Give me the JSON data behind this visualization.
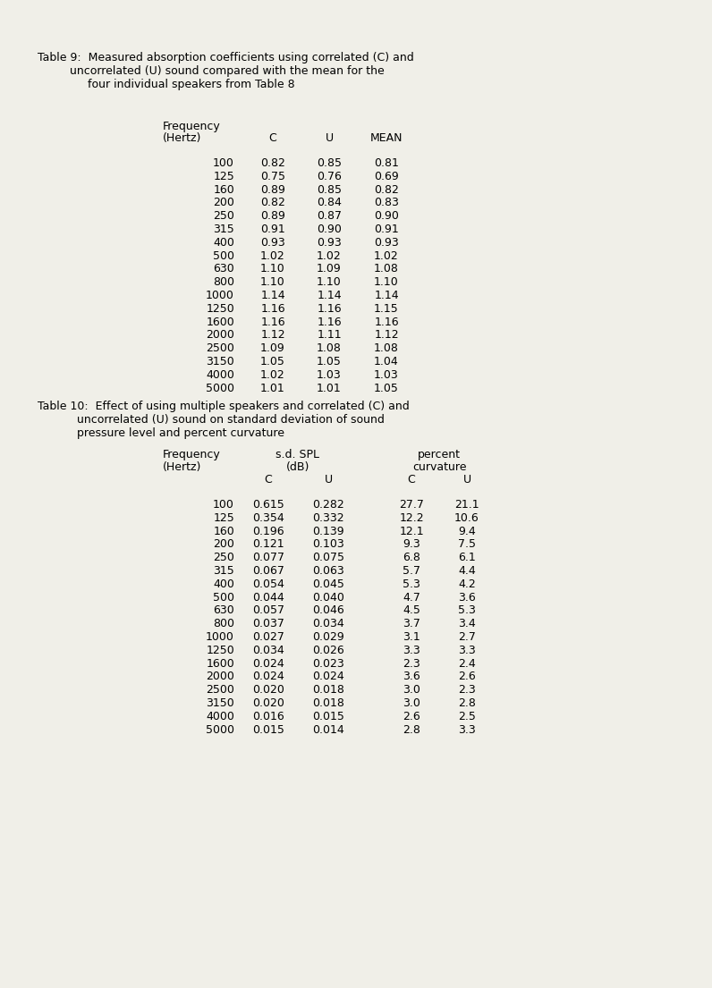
{
  "table9_title_line1": "Table 9:  Measured absorption coefficients using correlated (C) and",
  "table9_title_line2": "         uncorrelated (U) sound compared with the mean for the",
  "table9_title_line3": "              four individual speakers from Table 8",
  "table9_rows": [
    [
      "100",
      "0.82",
      "0.85",
      "0.81"
    ],
    [
      "125",
      "0.75",
      "0.76",
      "0.69"
    ],
    [
      "160",
      "0.89",
      "0.85",
      "0.82"
    ],
    [
      "200",
      "0.82",
      "0.84",
      "0.83"
    ],
    [
      "250",
      "0.89",
      "0.87",
      "0.90"
    ],
    [
      "315",
      "0.91",
      "0.90",
      "0.91"
    ],
    [
      "400",
      "0.93",
      "0.93",
      "0.93"
    ],
    [
      "500",
      "1.02",
      "1.02",
      "1.02"
    ],
    [
      "630",
      "1.10",
      "1.09",
      "1.08"
    ],
    [
      "800",
      "1.10",
      "1.10",
      "1.10"
    ],
    [
      "1000",
      "1.14",
      "1.14",
      "1.14"
    ],
    [
      "1250",
      "1.16",
      "1.16",
      "1.15"
    ],
    [
      "1600",
      "1.16",
      "1.16",
      "1.16"
    ],
    [
      "2000",
      "1.12",
      "1.11",
      "1.12"
    ],
    [
      "2500",
      "1.09",
      "1.08",
      "1.08"
    ],
    [
      "3150",
      "1.05",
      "1.05",
      "1.04"
    ],
    [
      "4000",
      "1.02",
      "1.03",
      "1.03"
    ],
    [
      "5000",
      "1.01",
      "1.01",
      "1.05"
    ]
  ],
  "table10_title_line1": "Table 10:  Effect of using multiple speakers and correlated (C) and",
  "table10_title_line2": "           uncorrelated (U) sound on standard deviation of sound",
  "table10_title_line3": "           pressure level and percent curvature",
  "table10_rows": [
    [
      "100",
      "0.615",
      "0.282",
      "27.7",
      "21.1"
    ],
    [
      "125",
      "0.354",
      "0.332",
      "12.2",
      "10.6"
    ],
    [
      "160",
      "0.196",
      "0.139",
      "12.1",
      "9.4"
    ],
    [
      "200",
      "0.121",
      "0.103",
      "9.3",
      "7.5"
    ],
    [
      "250",
      "0.077",
      "0.075",
      "6.8",
      "6.1"
    ],
    [
      "315",
      "0.067",
      "0.063",
      "5.7",
      "4.4"
    ],
    [
      "400",
      "0.054",
      "0.045",
      "5.3",
      "4.2"
    ],
    [
      "500",
      "0.044",
      "0.040",
      "4.7",
      "3.6"
    ],
    [
      "630",
      "0.057",
      "0.046",
      "4.5",
      "5.3"
    ],
    [
      "800",
      "0.037",
      "0.034",
      "3.7",
      "3.4"
    ],
    [
      "1000",
      "0.027",
      "0.029",
      "3.1",
      "2.7"
    ],
    [
      "1250",
      "0.034",
      "0.026",
      "3.3",
      "3.3"
    ],
    [
      "1600",
      "0.024",
      "0.023",
      "2.3",
      "2.4"
    ],
    [
      "2000",
      "0.024",
      "0.024",
      "3.6",
      "2.6"
    ],
    [
      "2500",
      "0.020",
      "0.018",
      "3.0",
      "2.3"
    ],
    [
      "3150",
      "0.020",
      "0.018",
      "3.0",
      "2.8"
    ],
    [
      "4000",
      "0.016",
      "0.015",
      "2.6",
      "2.5"
    ],
    [
      "5000",
      "0.015",
      "0.014",
      "2.8",
      "3.3"
    ]
  ],
  "bg_color": "#f0efe8",
  "font_size": 9.0
}
